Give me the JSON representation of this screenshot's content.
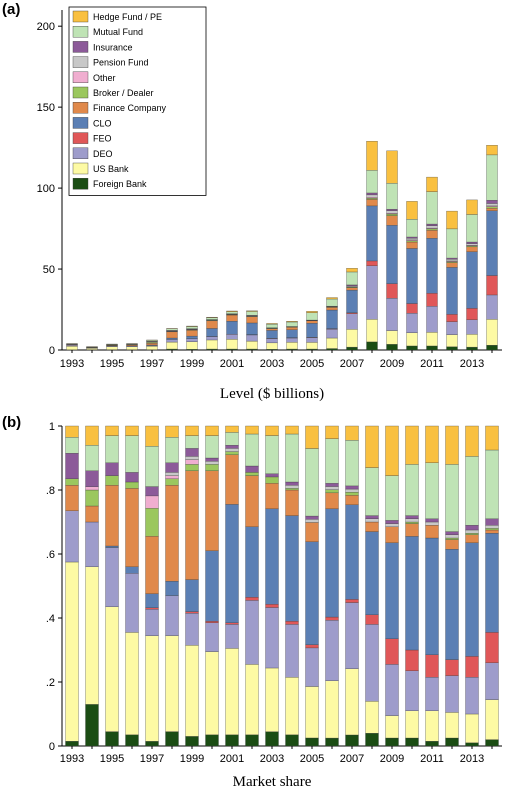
{
  "figure": {
    "panel_a": {
      "letter": "(a)",
      "caption": "Level ($ billions)"
    },
    "panel_b": {
      "letter": "(b)",
      "caption": "Market share"
    }
  },
  "chart_data": [
    {
      "type": "bar",
      "stacked": true,
      "panel": "a",
      "xlabel": "Level ($ billions)",
      "ylim": [
        0,
        210
      ],
      "yticks": [
        0,
        50,
        100,
        150,
        200
      ],
      "xtick_labels": [
        "1993",
        "1995",
        "1997",
        "1999",
        "2001",
        "2003",
        "2005",
        "2007",
        "2009",
        "2011",
        "2013"
      ],
      "categories": [
        "1993",
        "1994",
        "1995",
        "1996",
        "1997",
        "1998",
        "1999",
        "2000",
        "2001",
        "2002",
        "2003",
        "2004",
        "2005",
        "2006",
        "2007",
        "2008",
        "2009",
        "2010",
        "2011",
        "2012",
        "2013",
        "2014"
      ],
      "legend": {
        "placement": "top-left",
        "order": [
          "Hedge Fund / PE",
          "Mutual Fund",
          "Insurance",
          "Pension Fund",
          "Other",
          "Broker / Dealer",
          "Finance Company",
          "CLO",
          "FEO",
          "DEO",
          "US Bank",
          "Foreign Bank"
        ]
      },
      "series": [
        {
          "name": "Foreign Bank",
          "color": "#1b4d14",
          "values": [
            0.1,
            0.2,
            0.2,
            0.2,
            0.2,
            0.6,
            0.5,
            0.6,
            0.6,
            0.6,
            0.5,
            0.6,
            0.6,
            0.9,
            1.8,
            5.0,
            3.5,
            2.5,
            2.5,
            2.0,
            1.8,
            3.0
          ]
        },
        {
          "name": "US Bank",
          "color": "#fdfaa4",
          "values": [
            2.2,
            0.9,
            1.9,
            1.8,
            2.2,
            4.3,
            4.6,
            5.6,
            6.1,
            4.9,
            3.9,
            4.2,
            4.1,
            6.5,
            11.0,
            14.0,
            8.5,
            8.2,
            8.5,
            7.5,
            7.9,
            16.0
          ]
        },
        {
          "name": "DEO",
          "color": "#9e9ccb",
          "values": [
            0.6,
            0.3,
            0.4,
            0.5,
            0.4,
            1.6,
            1.8,
            2.0,
            3.0,
            3.8,
            2.7,
            2.6,
            3.0,
            5.5,
            9.6,
            33.0,
            20.0,
            12.0,
            16.0,
            8.0,
            9.0,
            15.0
          ]
        },
        {
          "name": "FEO",
          "color": "#e05758",
          "values": [
            0,
            0,
            0,
            0,
            0,
            0,
            0.1,
            0.1,
            0.1,
            0.2,
            0.2,
            0.2,
            0.2,
            0.3,
            0.6,
            3.0,
            9.0,
            6.0,
            8.0,
            4.5,
            7.0,
            12.0
          ]
        },
        {
          "name": "CLO",
          "color": "#5b7fb4",
          "values": [
            0,
            0,
            0.1,
            0.2,
            0.3,
            0.9,
            1.6,
            5.0,
            8.0,
            7.2,
            4.8,
            4.9,
            8.6,
            11.5,
            14.0,
            34.0,
            36.0,
            34.0,
            34.0,
            29.0,
            35.0,
            40.0
          ]
        },
        {
          "name": "Finance Company",
          "color": "#e0894b",
          "values": [
            0.3,
            0.1,
            0.4,
            0.6,
            1.1,
            3.8,
            3.6,
            4.7,
            3.8,
            3.8,
            1.0,
            1.5,
            1.5,
            1.6,
            1.5,
            4.0,
            6.0,
            4.0,
            5.0,
            3.0,
            3.0,
            1.5
          ]
        },
        {
          "name": "Broker / Dealer",
          "color": "#9bc75e",
          "values": [
            0.1,
            0.1,
            0.1,
            0.1,
            0.6,
            0.2,
            0.2,
            0.3,
            0.3,
            0.3,
            0.3,
            0.2,
            0.2,
            0.3,
            0.4,
            0.8,
            1.0,
            0.8,
            0.8,
            0.6,
            0.6,
            1.0
          ]
        },
        {
          "name": "Other",
          "color": "#f0aed0",
          "values": [
            0,
            0,
            0,
            0,
            0.3,
            0.2,
            0.2,
            0.1,
            0.1,
            0.1,
            0.1,
            0.1,
            0.1,
            0.1,
            0.2,
            0.5,
            0.5,
            0.5,
            0.5,
            0.4,
            0.4,
            0.5
          ]
        },
        {
          "name": "Pension Fund",
          "color": "#c8c8c8",
          "values": [
            0,
            0,
            0,
            0,
            0,
            0.2,
            0.2,
            0.2,
            0.2,
            0.2,
            0.1,
            0.1,
            0.1,
            0.2,
            0.5,
            1.5,
            1.5,
            1.0,
            1.5,
            1.0,
            1.0,
            1.5
          ]
        },
        {
          "name": "Insurance",
          "color": "#8c5a99",
          "values": [
            0.3,
            0.2,
            0.1,
            0.1,
            0.3,
            0.3,
            0.4,
            0.2,
            0.2,
            0.3,
            0.1,
            0.1,
            0.1,
            0.2,
            0.6,
            1.2,
            1.0,
            0.8,
            1.0,
            0.8,
            1.0,
            2.0
          ]
        },
        {
          "name": "Mutual Fund",
          "color": "#bfe3b5",
          "values": [
            0.3,
            0.2,
            0.4,
            0.4,
            0.6,
            1.0,
            1.3,
            1.2,
            1.2,
            2.4,
            2.3,
            2.8,
            4.5,
            4.4,
            8.0,
            14.0,
            16.0,
            11.0,
            20.0,
            18.0,
            17.0,
            28.0
          ]
        },
        {
          "name": "Hedge Fund / PE",
          "color": "#f9c040",
          "values": [
            0.1,
            0.1,
            0.1,
            0.1,
            0.2,
            0.2,
            0.3,
            0.3,
            0.5,
            0.4,
            0.4,
            0.5,
            0.9,
            0.9,
            2.3,
            18.0,
            20.0,
            11.0,
            9.0,
            11.0,
            9.0,
            6.0
          ]
        }
      ]
    },
    {
      "type": "bar",
      "stacked": true,
      "panel": "b",
      "xlabel": "Market share",
      "ylim": [
        0,
        1
      ],
      "yticks": [
        0,
        0.2,
        0.4,
        0.6,
        0.8,
        1
      ],
      "ytick_labels": [
        "0",
        ".2",
        ".4",
        ".6",
        ".8",
        "1"
      ],
      "xtick_labels": [
        "1993",
        "1995",
        "1997",
        "1999",
        "2001",
        "2003",
        "2005",
        "2007",
        "2009",
        "2011",
        "2013"
      ],
      "categories": [
        "1993",
        "1994",
        "1995",
        "1996",
        "1997",
        "1998",
        "1999",
        "2000",
        "2001",
        "2002",
        "2003",
        "2004",
        "2005",
        "2006",
        "2007",
        "2008",
        "2009",
        "2010",
        "2011",
        "2012",
        "2013",
        "2014"
      ],
      "share_series_order": [
        "Foreign Bank",
        "US Bank",
        "DEO",
        "FEO",
        "CLO",
        "Finance Company",
        "Broker / Dealer",
        "Other",
        "Pension Fund",
        "Insurance",
        "Mutual Fund",
        "Hedge Fund / PE"
      ],
      "shares": [
        [
          0.015,
          0.56,
          0.16,
          0.0,
          0.0,
          0.08,
          0.02,
          0.0,
          0.0,
          0.08,
          0.05,
          0.035
        ],
        [
          0.13,
          0.43,
          0.14,
          0.0,
          0.0,
          0.05,
          0.05,
          0.01,
          0.0,
          0.05,
          0.08,
          0.06
        ],
        [
          0.045,
          0.39,
          0.185,
          0.0,
          0.005,
          0.19,
          0.03,
          0.0,
          0.0,
          0.04,
          0.085,
          0.03
        ],
        [
          0.035,
          0.32,
          0.185,
          0.0,
          0.02,
          0.245,
          0.02,
          0.0,
          0.0,
          0.03,
          0.115,
          0.03
        ],
        [
          0.015,
          0.34,
          0.085,
          0.005,
          0.045,
          0.185,
          0.09,
          0.04,
          0.0,
          0.03,
          0.13,
          0.065
        ],
        [
          0.045,
          0.3,
          0.125,
          0.0,
          0.045,
          0.3,
          0.02,
          0.01,
          0.01,
          0.03,
          0.08,
          0.035
        ],
        [
          0.03,
          0.285,
          0.1,
          0.005,
          0.1,
          0.34,
          0.02,
          0.015,
          0.01,
          0.025,
          0.04,
          0.03
        ],
        [
          0.035,
          0.26,
          0.09,
          0.005,
          0.22,
          0.25,
          0.02,
          0.0,
          0.01,
          0.01,
          0.07,
          0.03
        ],
        [
          0.035,
          0.27,
          0.075,
          0.005,
          0.37,
          0.155,
          0.01,
          0.0,
          0.01,
          0.01,
          0.04,
          0.02
        ],
        [
          0.035,
          0.22,
          0.2,
          0.01,
          0.22,
          0.16,
          0.01,
          0.0,
          0.0,
          0.02,
          0.1,
          0.025
        ],
        [
          0.045,
          0.2,
          0.19,
          0.01,
          0.3,
          0.08,
          0.02,
          0.0,
          0.0,
          0.01,
          0.12,
          0.03
        ],
        [
          0.035,
          0.18,
          0.165,
          0.01,
          0.33,
          0.08,
          0.005,
          0.0,
          0.01,
          0.01,
          0.15,
          0.025
        ],
        [
          0.025,
          0.16,
          0.12,
          0.01,
          0.32,
          0.06,
          0.0,
          0.0,
          0.01,
          0.01,
          0.21,
          0.07
        ],
        [
          0.025,
          0.18,
          0.19,
          0.01,
          0.34,
          0.05,
          0.01,
          0.0,
          0.01,
          0.01,
          0.14,
          0.04
        ],
        [
          0.035,
          0.21,
          0.21,
          0.01,
          0.3,
          0.03,
          0.01,
          0.0,
          0.01,
          0.01,
          0.145,
          0.045
        ],
        [
          0.04,
          0.1,
          0.24,
          0.03,
          0.26,
          0.03,
          0.0,
          0.0,
          0.01,
          0.01,
          0.15,
          0.13
        ],
        [
          0.025,
          0.07,
          0.16,
          0.08,
          0.3,
          0.05,
          0.0,
          0.0,
          0.01,
          0.01,
          0.14,
          0.155
        ],
        [
          0.025,
          0.085,
          0.125,
          0.065,
          0.355,
          0.04,
          0.005,
          0.0,
          0.01,
          0.01,
          0.16,
          0.12
        ],
        [
          0.015,
          0.095,
          0.105,
          0.07,
          0.365,
          0.04,
          0.0,
          0.0,
          0.01,
          0.01,
          0.175,
          0.115
        ],
        [
          0.025,
          0.08,
          0.115,
          0.05,
          0.345,
          0.03,
          0.005,
          0.0,
          0.01,
          0.01,
          0.21,
          0.12
        ],
        [
          0.01,
          0.09,
          0.115,
          0.065,
          0.355,
          0.025,
          0.005,
          0.0,
          0.01,
          0.015,
          0.215,
          0.095
        ],
        [
          0.02,
          0.125,
          0.115,
          0.095,
          0.31,
          0.01,
          0.005,
          0.0,
          0.01,
          0.02,
          0.215,
          0.075
        ]
      ]
    }
  ]
}
